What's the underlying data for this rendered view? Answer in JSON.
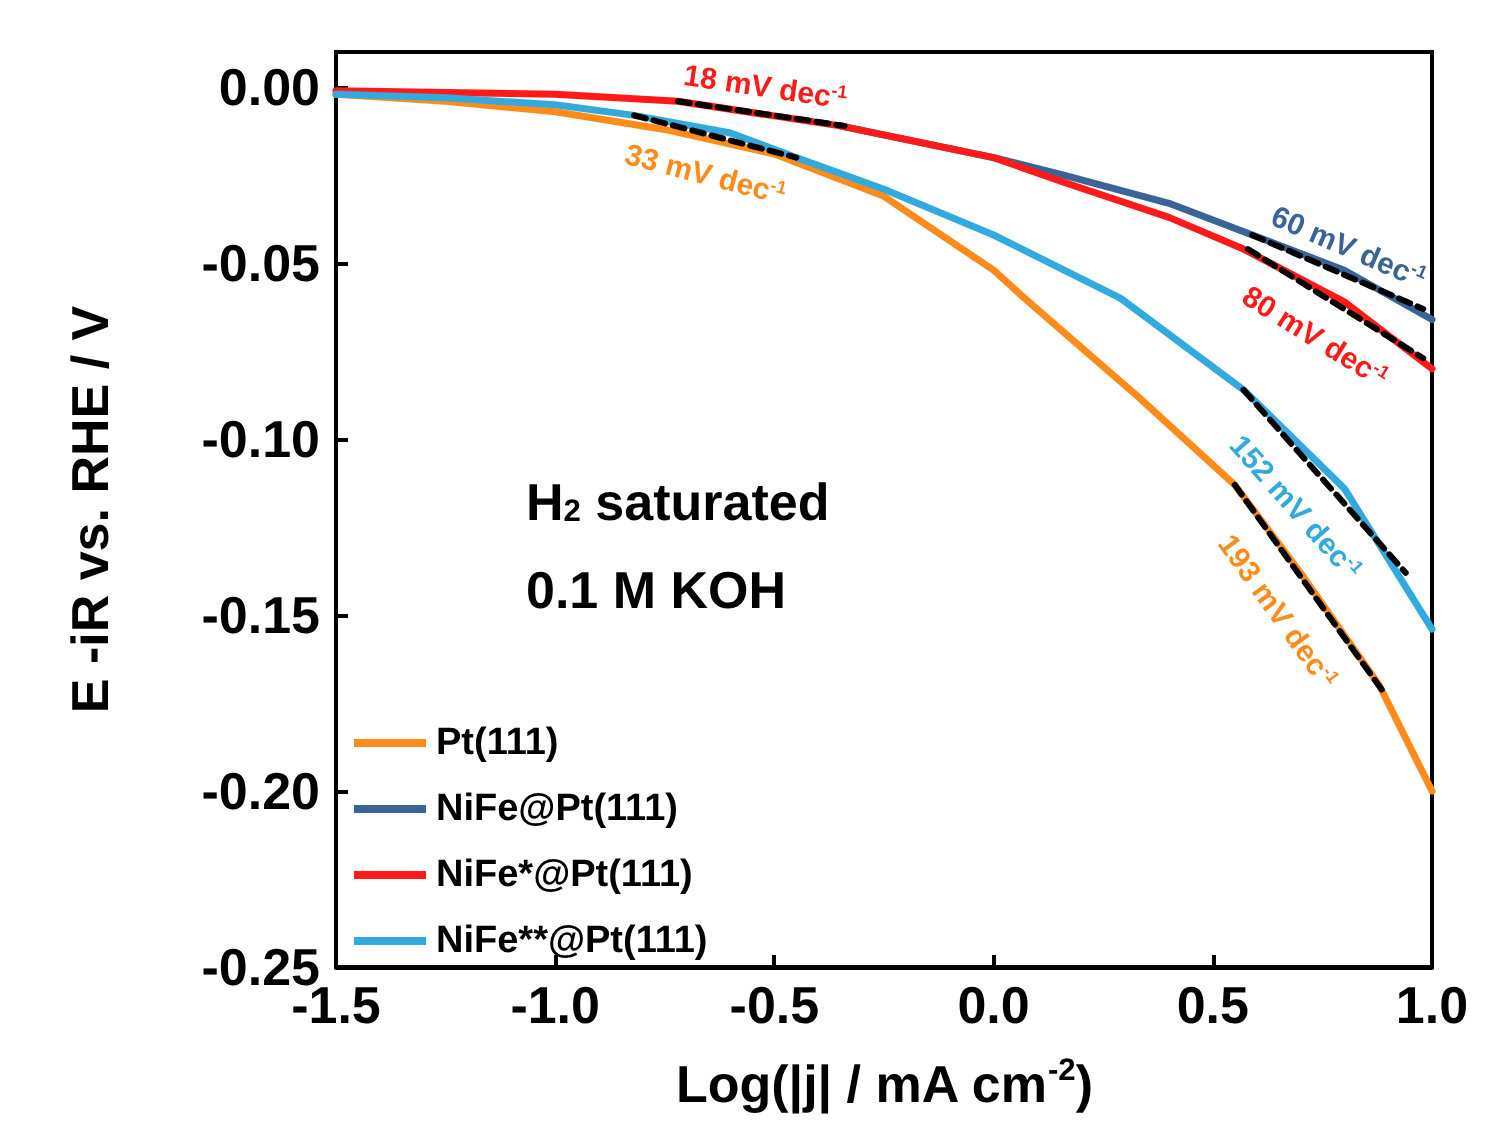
{
  "chart_data": {
    "type": "line",
    "xlabel": "Log(|j| / mA cm$^{-2}$)",
    "ylabel": "E -iR vs. RHE / V",
    "xlim": [
      -1.5,
      1.0
    ],
    "xticks": [
      -1.5,
      {
        "value": -1,
        "label": "-1.0"
      },
      -0.5,
      {
        "value": 0,
        "label": "0.0"
      },
      0.5,
      {
        "value": 1,
        "label": "1.0"
      }
    ],
    "ylim": [
      -0.25,
      0.01
    ],
    "yticks": [
      {
        "value": 0,
        "label": "0.00"
      },
      -0.05,
      {
        "value": -0.1,
        "label": "-0.10"
      },
      -0.15,
      {
        "value": -0.2,
        "label": "-0.20"
      },
      -0.25
    ],
    "grid": false,
    "legend": "bottom left",
    "marker": "none",
    "line_style": "solid",
    "series": [
      {
        "name": "Pt(111)",
        "color": "#ff8c1a",
        "x": [
          -1.5,
          -1.25,
          -1.0,
          -0.75,
          -0.5,
          -0.25,
          0,
          0.08,
          0.33,
          0.55,
          0.7,
          0.88,
          1.0
        ],
        "values": [
          -0.002,
          -0.004,
          -0.007,
          -0.012,
          -0.019,
          -0.031,
          -0.052,
          -0.061,
          -0.088,
          -0.113,
          -0.138,
          -0.17,
          -0.2
        ]
      },
      {
        "name": "NiFe@Pt(111)",
        "color": "#3a6496",
        "x": [
          -0.35,
          0,
          0.16,
          0.4,
          0.59,
          0.8,
          1.0
        ],
        "values": [
          -0.011,
          -0.02,
          -0.025,
          -0.033,
          -0.042,
          -0.052,
          -0.066
        ]
      },
      {
        "name": "NiFe*@Pt(111)",
        "color": "#ff1a1a",
        "x": [
          -1.5,
          -1.0,
          -0.72,
          -0.35,
          0,
          0.16,
          0.4,
          0.57,
          0.8,
          1.0
        ],
        "values": [
          -0.001,
          -0.002,
          -0.004,
          -0.011,
          -0.02,
          -0.027,
          -0.037,
          -0.046,
          -0.061,
          -0.08
        ]
      },
      {
        "name": "NiFe**@Pt(111)",
        "color": "#33aadd",
        "x": [
          -1.5,
          -1.25,
          -1.0,
          -0.82,
          -0.6,
          -0.45,
          -0.25,
          0,
          0.29,
          0.57,
          0.8,
          1.0
        ],
        "values": [
          -0.002,
          -0.003,
          -0.005,
          -0.008,
          -0.013,
          -0.02,
          -0.029,
          -0.042,
          -0.06,
          -0.086,
          -0.114,
          -0.154
        ]
      },
      {
        "color": "#000000",
        "line_style": "dashed",
        "x": [
          -0.72,
          -0.34
        ],
        "values": [
          -0.004,
          -0.011
        ]
      },
      {
        "color": "#000000",
        "line_style": "dashed",
        "x": [
          -0.82,
          -0.45
        ],
        "values": [
          -0.008,
          -0.02
        ]
      },
      {
        "color": "#000000",
        "line_style": "dashed",
        "x": [
          0.59,
          0.98
        ],
        "values": [
          -0.042,
          -0.063
        ]
      },
      {
        "color": "#000000",
        "line_style": "dashed",
        "x": [
          0.58,
          0.98
        ],
        "values": [
          -0.046,
          -0.077
        ]
      },
      {
        "color": "#000000",
        "line_style": "dashed",
        "x": [
          0.57,
          0.94
        ],
        "values": [
          -0.086,
          -0.138
        ]
      },
      {
        "color": "#000000",
        "line_style": "dashed",
        "x": [
          0.55,
          0.89
        ],
        "values": [
          -0.113,
          -0.172
        ]
      }
    ],
    "annotations": [
      {
        "text": "18 mV dec$^{-1}$",
        "x": -0.53,
        "y": -0.0075
      },
      {
        "text": "33 mV dec$^{-1}$",
        "x": -0.635,
        "y": -0.014
      },
      {
        "text": "60 mV dec$^{-1}$",
        "x": 0.785,
        "y": -0.0525
      },
      {
        "text": "80 mV dec$^{-1}$",
        "x": 0.78,
        "y": -0.0615
      },
      {
        "text": "152 mV dec$^{-1}$",
        "x": 0.755,
        "y": -0.112
      },
      {
        "text": "193 mV dec$^{-1}$",
        "x": 0.72,
        "y": -0.1425
      },
      "H$_{2}$ saturated",
      "0.1 M KOH"
    ]
  }
}
